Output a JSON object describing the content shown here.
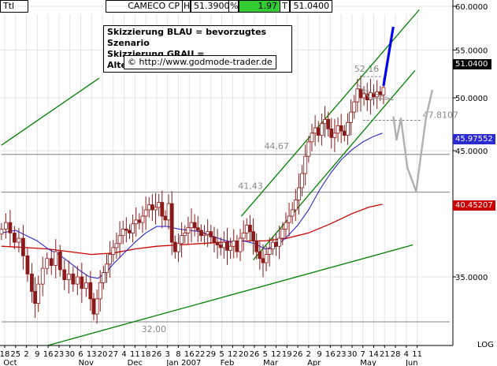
{
  "header": {
    "code": "Ttl",
    "symbol": "CAMECO CP",
    "high_label": "H",
    "high_value": "51.3900",
    "change_label": "%",
    "change_value": "1.97",
    "last_label": "T",
    "last_value": "51.0400"
  },
  "notes": {
    "blue": "Skizzierung BLAU = bevorzugtes Szenario",
    "gray": "Skizzierung GRAU = Alternativszenario",
    "url": "http://www.godmode-trader.de",
    "copyright_symbol": "©"
  },
  "colors": {
    "candle": "#8b1a1a",
    "ma_fast": "#2a2ad0",
    "ma_slow": "#cc0000",
    "channel": "#008000",
    "scenario_blue": "#0000ee",
    "scenario_gray": "#b0b0b0",
    "level_line": "#808080",
    "price_tag_last": "#000000",
    "price_tag_blue": "#2a2ad0",
    "price_tag_red": "#cc0000",
    "change_bg": "#33cc33"
  },
  "chart_data": {
    "type": "candlestick",
    "title": "CAMECO CP",
    "y_axis": {
      "ticks": [
        {
          "value": 60,
          "label": "60.0000"
        },
        {
          "value": 55,
          "label": "55.0000"
        },
        {
          "value": 50,
          "label": "50.0000"
        },
        {
          "value": 45,
          "label": "45.0000"
        },
        {
          "value": 35,
          "label": "35.0000"
        }
      ],
      "scale_label": "LOG"
    },
    "x_axis": {
      "day_labels": [
        "18",
        "25",
        "2",
        "9",
        "16",
        "23",
        "30",
        "6",
        "13",
        "20",
        "27",
        "4",
        "11",
        "18",
        "26",
        "3",
        "8",
        "16",
        "22",
        "29",
        "5",
        "12",
        "20",
        "26",
        "5",
        "12",
        "19",
        "26",
        "2",
        "9",
        "16",
        "23",
        "30",
        "7",
        "14",
        "21",
        "28",
        "4",
        "11"
      ],
      "month_labels": [
        {
          "label": "Oct",
          "index": 0.5
        },
        {
          "label": "Nov",
          "index": 7.5
        },
        {
          "label": "Dec",
          "index": 12.0
        },
        {
          "label": "Jan 2007",
          "index": 16.5
        },
        {
          "label": "Feb",
          "index": 20.5
        },
        {
          "label": "Mar",
          "index": 24.5
        },
        {
          "label": "Apr",
          "index": 28.5
        },
        {
          "label": "May",
          "index": 33.5
        },
        {
          "label": "Jun",
          "index": 37.5
        }
      ]
    },
    "levels": [
      {
        "value": 52.16,
        "label": "52,16"
      },
      {
        "value": 47.81,
        "label": "47.8107"
      },
      {
        "value": 44.67,
        "label": "44,67"
      },
      {
        "value": 41.43,
        "label": "41,43"
      },
      {
        "value": 32.0,
        "label": "32,00"
      }
    ],
    "price_tags": [
      {
        "value": 51.04,
        "label": "51.0400"
      },
      {
        "value": 45.975,
        "label": "45.97552"
      },
      {
        "value": 40.452,
        "label": "40.45207"
      }
    ],
    "candle_closes": [
      [
        -0.3,
        38.5
      ],
      [
        0.1,
        39.0
      ],
      [
        0.5,
        38.2
      ],
      [
        0.9,
        37.5
      ],
      [
        1.3,
        37.8
      ],
      [
        1.7,
        36.5
      ],
      [
        2.1,
        35.2
      ],
      [
        2.5,
        34.0
      ],
      [
        2.8,
        33.2
      ],
      [
        3.1,
        34.5
      ],
      [
        3.5,
        35.6
      ],
      [
        3.9,
        36.3
      ],
      [
        4.3,
        35.8
      ],
      [
        4.7,
        36.8
      ],
      [
        5.1,
        35.5
      ],
      [
        5.5,
        34.8
      ],
      [
        5.9,
        35.2
      ],
      [
        6.3,
        34.5
      ],
      [
        6.7,
        35.0
      ],
      [
        7.1,
        34.2
      ],
      [
        7.5,
        34.6
      ],
      [
        7.9,
        33.5
      ],
      [
        8.2,
        32.5
      ],
      [
        8.5,
        33.5
      ],
      [
        8.8,
        34.6
      ],
      [
        9.1,
        35.3
      ],
      [
        9.4,
        35.9
      ],
      [
        9.7,
        36.6
      ],
      [
        10.0,
        37.1
      ],
      [
        10.3,
        37.4
      ],
      [
        10.6,
        38.0
      ],
      [
        10.9,
        38.5
      ],
      [
        11.2,
        38.4
      ],
      [
        11.5,
        38.2
      ],
      [
        11.8,
        38.9
      ],
      [
        12.1,
        39.2
      ],
      [
        12.4,
        39.0
      ],
      [
        12.7,
        39.5
      ],
      [
        13.0,
        40.0
      ],
      [
        13.3,
        40.4
      ],
      [
        13.6,
        40.0
      ],
      [
        13.9,
        40.2
      ],
      [
        14.2,
        40.6
      ],
      [
        14.5,
        39.5
      ],
      [
        14.8,
        39.2
      ],
      [
        15.1,
        40.5
      ],
      [
        15.4,
        37.5
      ],
      [
        15.7,
        36.8
      ],
      [
        16.0,
        37.4
      ],
      [
        16.3,
        38.0
      ],
      [
        16.6,
        38.2
      ],
      [
        16.9,
        38.6
      ],
      [
        17.2,
        39.0
      ],
      [
        17.5,
        38.6
      ],
      [
        17.8,
        38.4
      ],
      [
        18.1,
        38.0
      ],
      [
        18.4,
        38.1
      ],
      [
        18.7,
        38.3
      ],
      [
        19.0,
        37.9
      ],
      [
        19.3,
        37.5
      ],
      [
        19.6,
        37.3
      ],
      [
        19.9,
        37.1
      ],
      [
        20.2,
        37.5
      ],
      [
        20.5,
        36.9
      ],
      [
        20.8,
        37.2
      ],
      [
        21.1,
        37.6
      ],
      [
        21.4,
        36.8
      ],
      [
        21.7,
        37.8
      ],
      [
        22.0,
        38.2
      ],
      [
        22.3,
        38.8
      ],
      [
        22.6,
        38.3
      ],
      [
        22.9,
        37.6
      ],
      [
        23.2,
        36.8
      ],
      [
        23.5,
        36.3
      ],
      [
        23.8,
        36.0
      ],
      [
        24.1,
        36.6
      ],
      [
        24.4,
        37.0
      ],
      [
        24.7,
        37.5
      ],
      [
        25.0,
        37.2
      ],
      [
        25.3,
        37.8
      ],
      [
        25.6,
        38.5
      ],
      [
        25.9,
        39.0
      ],
      [
        26.2,
        39.5
      ],
      [
        26.5,
        40.0
      ],
      [
        26.8,
        40.8
      ],
      [
        27.1,
        41.8
      ],
      [
        27.4,
        43.0
      ],
      [
        27.7,
        44.5
      ],
      [
        28.0,
        45.8
      ],
      [
        28.3,
        46.6
      ],
      [
        28.6,
        47.1
      ],
      [
        28.9,
        46.4
      ],
      [
        29.2,
        47.5
      ],
      [
        29.5,
        47.9
      ],
      [
        29.8,
        47.0
      ],
      [
        30.1,
        46.2
      ],
      [
        30.4,
        46.6
      ],
      [
        30.7,
        47.3
      ],
      [
        31.0,
        46.8
      ],
      [
        31.3,
        46.4
      ],
      [
        31.6,
        47.6
      ],
      [
        31.9,
        48.6
      ],
      [
        32.2,
        49.6
      ],
      [
        32.5,
        50.9
      ],
      [
        32.8,
        50.0
      ],
      [
        33.1,
        50.4
      ],
      [
        33.4,
        49.8
      ],
      [
        33.7,
        50.5
      ],
      [
        34.0,
        50.1
      ],
      [
        34.3,
        50.6
      ],
      [
        34.6,
        50.3
      ],
      [
        34.9,
        51.04
      ]
    ],
    "ma_fast": [
      [
        -0.3,
        38.2
      ],
      [
        1.0,
        38.4
      ],
      [
        2.0,
        38.0
      ],
      [
        3.0,
        37.6
      ],
      [
        4.0,
        37.0
      ],
      [
        5.0,
        36.6
      ],
      [
        6.0,
        36.0
      ],
      [
        7.0,
        35.4
      ],
      [
        7.8,
        35.0
      ],
      [
        8.6,
        34.9
      ],
      [
        9.3,
        35.3
      ],
      [
        10.0,
        35.9
      ],
      [
        11.0,
        36.7
      ],
      [
        12.0,
        37.5
      ],
      [
        13.0,
        38.2
      ],
      [
        14.0,
        38.7
      ],
      [
        15.0,
        38.7
      ],
      [
        16.0,
        38.5
      ],
      [
        17.0,
        38.4
      ],
      [
        18.0,
        38.3
      ],
      [
        19.0,
        38.0
      ],
      [
        20.0,
        37.7
      ],
      [
        21.0,
        37.5
      ],
      [
        22.0,
        37.6
      ],
      [
        23.0,
        37.4
      ],
      [
        24.0,
        37.0
      ],
      [
        25.0,
        37.2
      ],
      [
        26.0,
        37.9
      ],
      [
        27.0,
        38.8
      ],
      [
        28.0,
        40.0
      ],
      [
        29.0,
        41.6
      ],
      [
        30.0,
        43.0
      ],
      [
        31.0,
        44.2
      ],
      [
        32.0,
        45.1
      ],
      [
        33.0,
        45.8
      ],
      [
        34.0,
        46.3
      ],
      [
        34.8,
        46.6
      ]
    ],
    "ma_slow": [
      [
        -0.3,
        37.2
      ],
      [
        2.0,
        37.1
      ],
      [
        4.0,
        37.0
      ],
      [
        6.0,
        36.8
      ],
      [
        8.0,
        36.6
      ],
      [
        10.0,
        36.7
      ],
      [
        12.0,
        37.0
      ],
      [
        14.0,
        37.2
      ],
      [
        16.0,
        37.3
      ],
      [
        18.0,
        37.4
      ],
      [
        20.0,
        37.5
      ],
      [
        22.0,
        37.6
      ],
      [
        24.0,
        37.6
      ],
      [
        26.0,
        37.8
      ],
      [
        28.0,
        38.2
      ],
      [
        30.0,
        38.9
      ],
      [
        32.0,
        39.7
      ],
      [
        33.5,
        40.2
      ],
      [
        34.8,
        40.45
      ]
    ],
    "channels": [
      {
        "from": [
          -0.3,
          45.5
        ],
        "to": [
          8.7,
          52.0
        ]
      },
      {
        "from": [
          3.8,
          30.5
        ],
        "to": [
          37.6,
          37.3
        ]
      },
      {
        "from": [
          21.8,
          39.5
        ],
        "to": [
          38.2,
          59.6
        ]
      },
      {
        "from": [
          22.9,
          36.2
        ],
        "to": [
          37.8,
          52.8
        ]
      }
    ],
    "triangle": [
      [
        32.6,
        51.3
      ],
      [
        33.6,
        50.0
      ],
      [
        35.8,
        49.8
      ],
      [
        32.8,
        50.9
      ]
    ],
    "scenario_blue": [
      [
        34.9,
        51.2
      ],
      [
        35.8,
        57.6
      ]
    ],
    "scenario_gray": [
      [
        35.8,
        48.2
      ],
      [
        36.1,
        46.0
      ],
      [
        36.5,
        48.0
      ],
      [
        37.1,
        43.5
      ],
      [
        37.9,
        41.5
      ],
      [
        38.8,
        48.0
      ],
      [
        39.4,
        50.8
      ]
    ]
  }
}
